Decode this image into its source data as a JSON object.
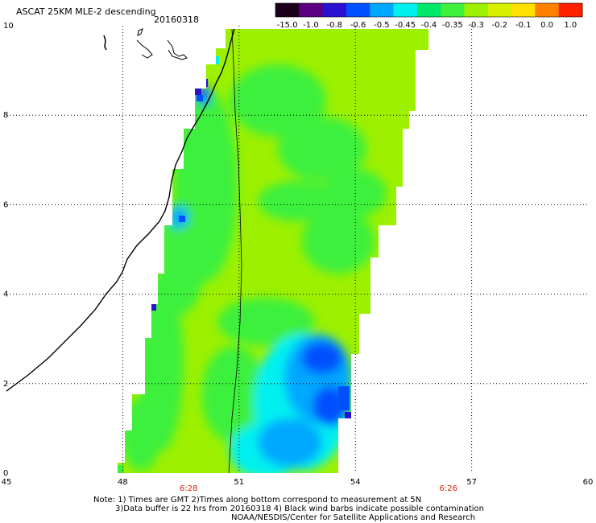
{
  "title": {
    "line": "ASCAT 25KM MLE-2 descending",
    "date": "20160318"
  },
  "colorbar": {
    "labels": [
      "-15.0",
      "-1.0",
      "-0.8",
      "-0.6",
      "-0.5",
      "-0.45",
      "-0.4",
      "-0.35",
      "-0.3",
      "-0.2",
      "-0.1",
      "0.0",
      "1.0"
    ],
    "colors": [
      "#1a001a",
      "#5a0080",
      "#2a10d0",
      "#0050ff",
      "#00a8ff",
      "#00f0f0",
      "#00e86a",
      "#3cf03c",
      "#9cf000",
      "#d8f000",
      "#ffe000",
      "#ff8000",
      "#ff2000"
    ]
  },
  "map_data": {
    "x_range": [
      45,
      60
    ],
    "y_range": [
      0,
      10
    ],
    "x_ticks": [
      "45",
      "48",
      "51",
      "54",
      "57",
      "60"
    ],
    "y_ticks": [
      "0",
      "2",
      "4",
      "6",
      "8",
      "10"
    ],
    "times": [
      {
        "label": "6:28",
        "lon": 49.7
      },
      {
        "label": "6:26",
        "lon": 56.4
      }
    ],
    "coast_colors": {
      "line": "#000000"
    },
    "field_colors": {
      "base": "#9cf000",
      "green": "#3cf03c",
      "cyan": "#00f0f0",
      "lightblue": "#00a8ff",
      "blue": "#0050ff",
      "deepblue": "#2a10d0"
    }
  },
  "notes": {
    "line1": "Note: 1) Times are GMT 2)Times along bottom correspond to measurement at 5N",
    "line2": "3)Data buffer is 22 hrs from 20160318 4) Black wind barbs indicate possible contamination",
    "line3": "NOAA/NESDIS/Center for Satellite Applications and Research"
  }
}
